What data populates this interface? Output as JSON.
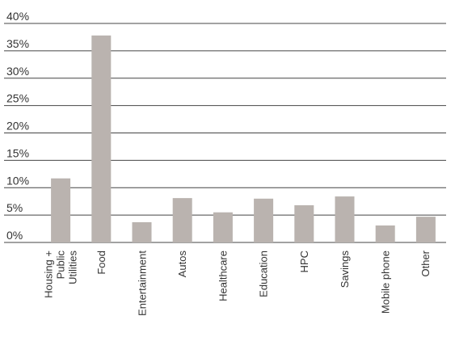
{
  "chart_data": {
    "type": "bar",
    "categories": [
      "Housing +\nPublic Utilities",
      "Food",
      "Entertainment",
      "Autos",
      "Healthcare",
      "Education",
      "HPC",
      "Savings",
      "Mobile phone",
      "Other"
    ],
    "values": [
      11.7,
      37.8,
      3.7,
      8.1,
      5.5,
      8.0,
      6.8,
      8.4,
      3.1,
      4.7
    ],
    "color": "#bab3af",
    "ylim": [
      0,
      40
    ],
    "yticks": [
      {
        "value": 0,
        "label": "0%"
      },
      {
        "value": 5,
        "label": "5%"
      },
      {
        "value": 10,
        "label": "10%"
      },
      {
        "value": 15,
        "label": "15%"
      },
      {
        "value": 20,
        "label": "20%"
      },
      {
        "value": 25,
        "label": "25%"
      },
      {
        "value": 30,
        "label": "30%"
      },
      {
        "value": 35,
        "label": "35%"
      },
      {
        "value": 40,
        "label": "40%"
      }
    ],
    "grid": true
  }
}
